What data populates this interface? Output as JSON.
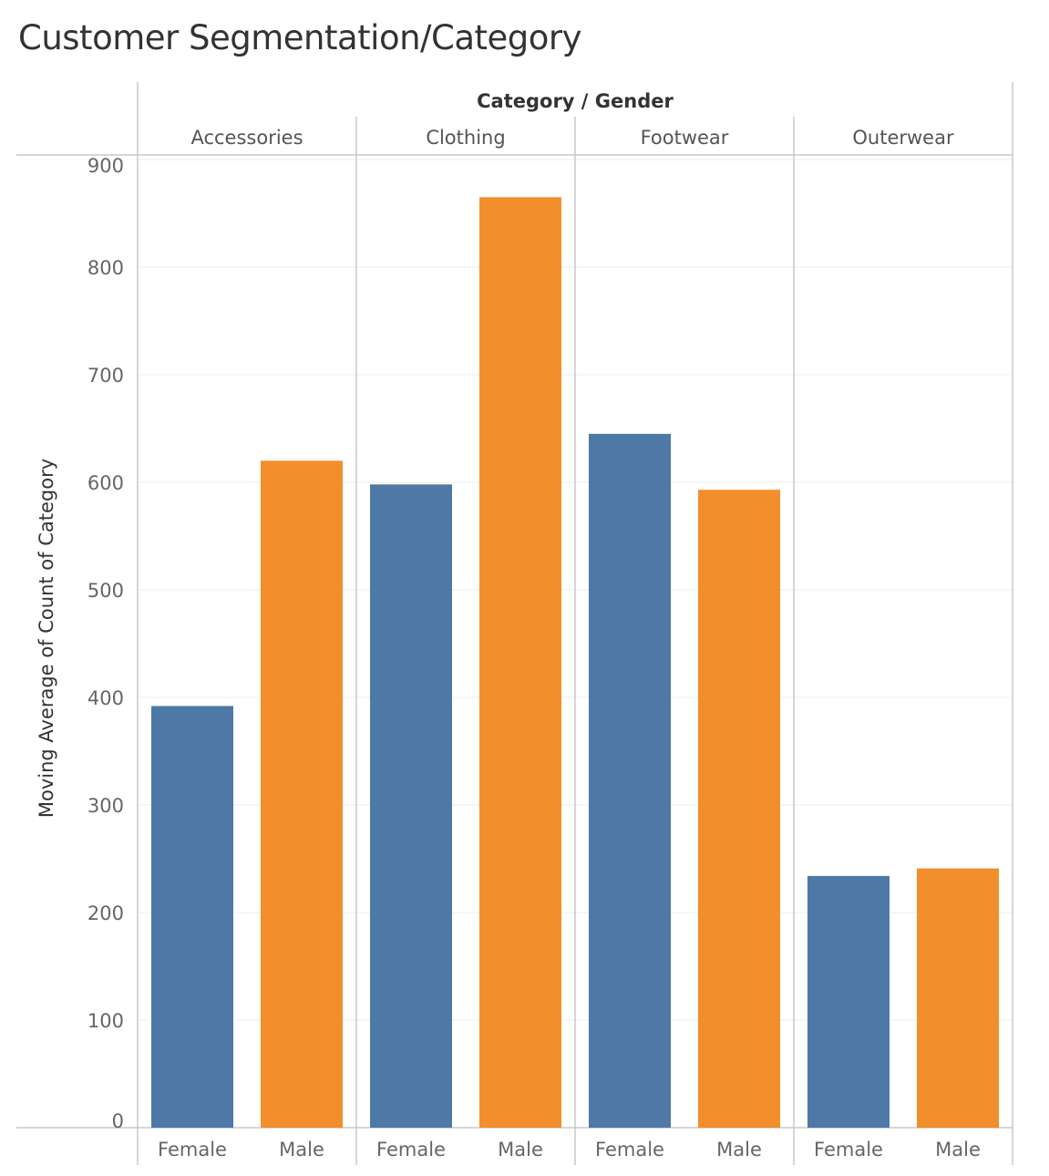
{
  "chart_data": {
    "type": "bar",
    "title": "Customer Segmentation/Category",
    "column_header": "Category / Gender",
    "groups": [
      "Accessories",
      "Clothing",
      "Footwear",
      "Outerwear"
    ],
    "categories": [
      "Female",
      "Male"
    ],
    "ylabel": "Moving Average of Count of Category",
    "ylim": [
      0,
      900
    ],
    "yticks": [
      0,
      100,
      200,
      300,
      400,
      500,
      600,
      700,
      800,
      900
    ],
    "grid": true,
    "colors": {
      "Female": "#4e79a7",
      "Male": "#f28e2b"
    },
    "bars": [
      {
        "group": "Accessories",
        "category": "Female",
        "value": 392
      },
      {
        "group": "Accessories",
        "category": "Male",
        "value": 620
      },
      {
        "group": "Clothing",
        "category": "Female",
        "value": 598
      },
      {
        "group": "Clothing",
        "category": "Male",
        "value": 865
      },
      {
        "group": "Footwear",
        "category": "Female",
        "value": 645
      },
      {
        "group": "Footwear",
        "category": "Male",
        "value": 593
      },
      {
        "group": "Outerwear",
        "category": "Female",
        "value": 234
      },
      {
        "group": "Outerwear",
        "category": "Male",
        "value": 241
      }
    ]
  }
}
